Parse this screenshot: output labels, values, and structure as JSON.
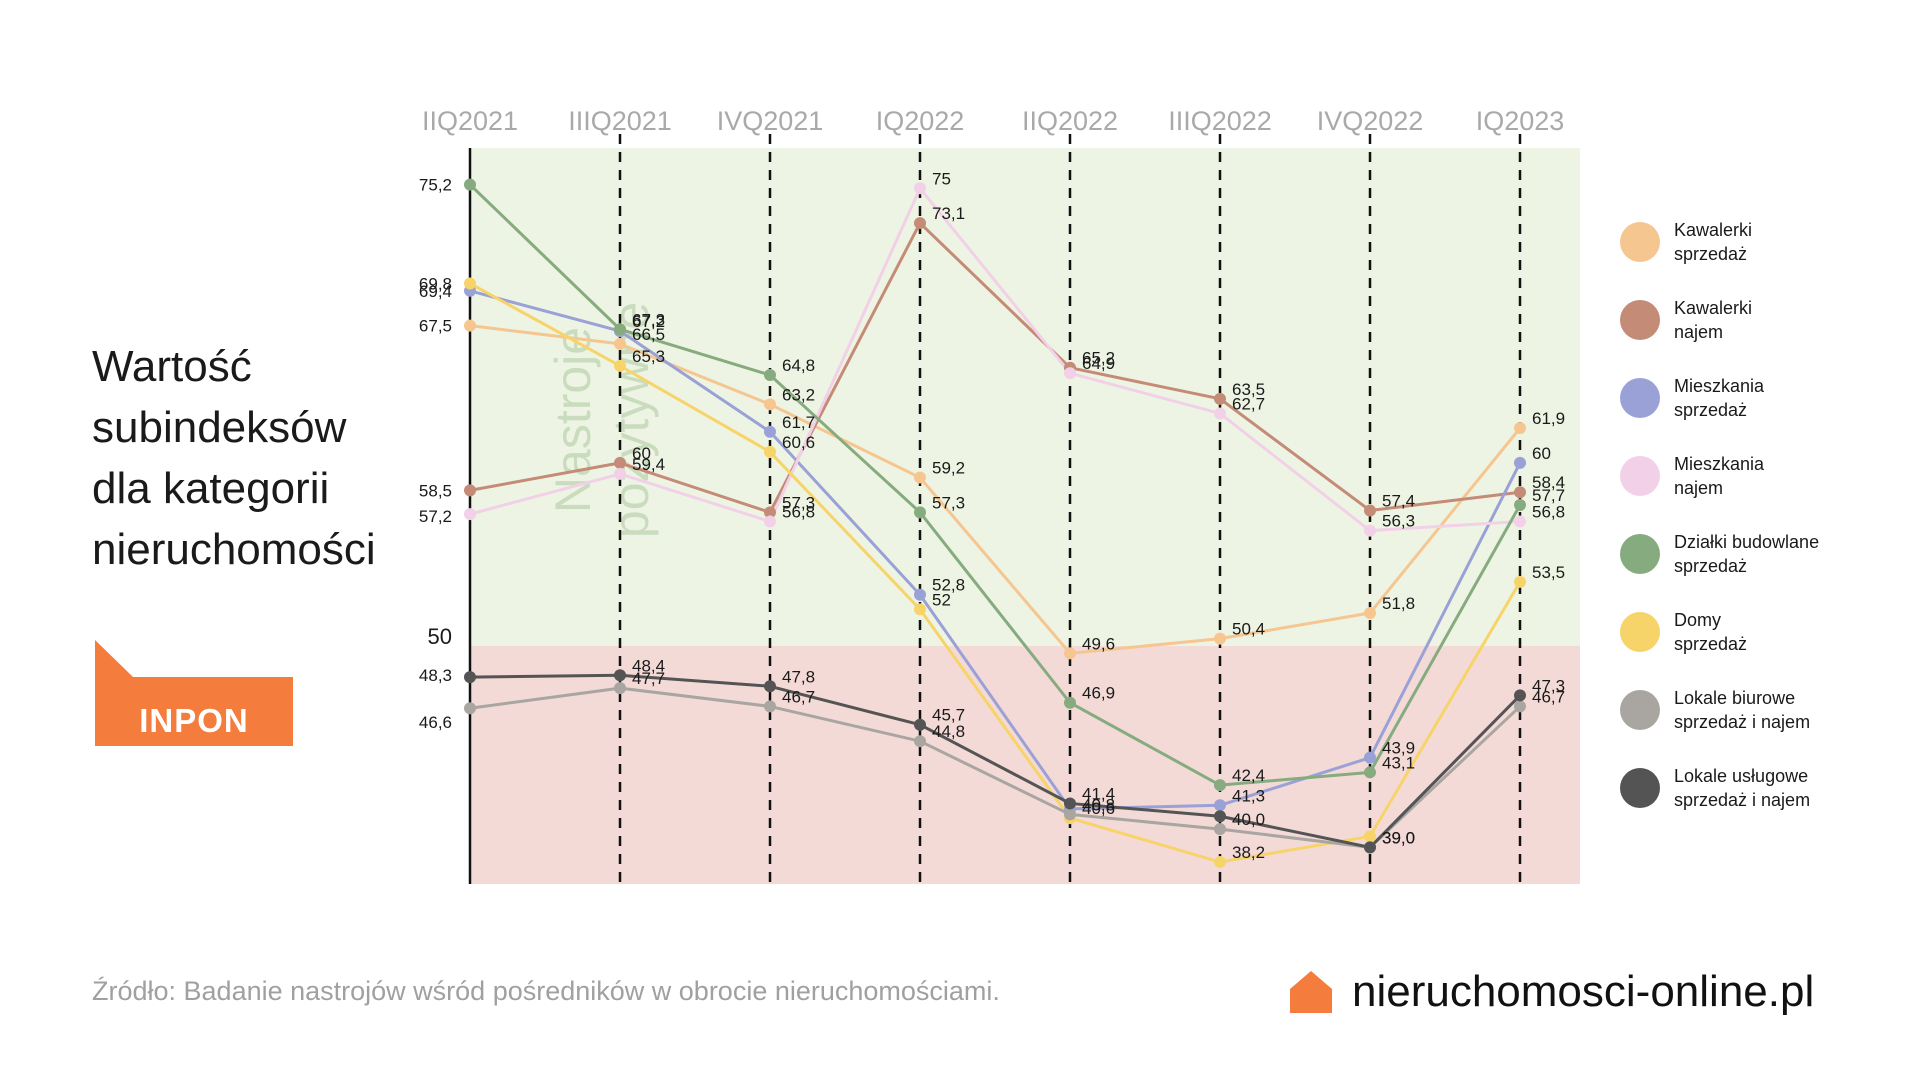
{
  "title_lines": [
    "Wartość",
    "subindeksów",
    "dla kategorii",
    "nieruchomości"
  ],
  "badge": {
    "label": "INPON",
    "color": "#f47c3c"
  },
  "source": "Źródło: Badanie nastrojów wśród pośredników w obrocie nieruchomościami.",
  "site": {
    "label": "nieruchomosci-online.pl",
    "icon": "house-icon",
    "icon_color": "#f47c3c"
  },
  "legend": [
    {
      "line1": "Kawalerki",
      "line2": "sprzedaż"
    },
    {
      "line1": "Kawalerki",
      "line2": "najem"
    },
    {
      "line1": "Mieszkania",
      "line2": "sprzedaż"
    },
    {
      "line1": "Mieszkania",
      "line2": "najem"
    },
    {
      "line1": "Działki budowlane",
      "line2": "sprzedaż"
    },
    {
      "line1": "Domy",
      "line2": "sprzedaż"
    },
    {
      "line1": "Lokale biurowe",
      "line2": "sprzedaż i najem"
    },
    {
      "line1": "Lokale usługowe",
      "line2": "sprzedaż i najem"
    }
  ],
  "chart_data": {
    "type": "line",
    "title": "Wartość subindeksów dla kategorii nieruchomości",
    "categories": [
      "IIQ2021",
      "IIIQ2021",
      "IVQ2021",
      "IQ2022",
      "IIQ2022",
      "IIIQ2022",
      "IVQ2022",
      "IQ2023"
    ],
    "ylim": [
      37,
      77.2
    ],
    "threshold": {
      "value": 50,
      "label": "50"
    },
    "region_labels": {
      "positive": "Nastroje pozytywne"
    },
    "region_colors": {
      "positive": "#eef4e3",
      "negative": "#f3dad7"
    },
    "series": [
      {
        "name": "Kawalerki sprzedaż",
        "color": "#f6c690",
        "values": [
          67.5,
          66.5,
          63.2,
          59.2,
          49.6,
          50.4,
          51.8,
          61.9
        ],
        "labels": [
          "67,5",
          "66,5",
          "63,2",
          "59,2",
          "49,6",
          "50,4",
          "51,8",
          "61,9"
        ]
      },
      {
        "name": "Kawalerki najem",
        "color": "#c48b77",
        "values": [
          58.5,
          60,
          57.3,
          73.1,
          65.2,
          63.5,
          57.4,
          58.4
        ],
        "labels": [
          "58,5",
          "60",
          "57,3",
          "73,1",
          "65,2",
          "63,5",
          "57,4",
          "58,4"
        ]
      },
      {
        "name": "Mieszkania sprzedaż",
        "color": "#9aa1d6",
        "values": [
          69.4,
          67.2,
          61.7,
          52.8,
          41.1,
          41.3,
          43.9,
          60
        ],
        "labels": [
          "69,4",
          "67,2",
          "61,7",
          "52,8",
          "",
          "41,3",
          "43,9",
          "60"
        ]
      },
      {
        "name": "Mieszkania najem",
        "color": "#f2d1e8",
        "values": [
          57.2,
          59.4,
          56.8,
          75,
          64.9,
          62.7,
          56.3,
          56.8
        ],
        "labels": [
          "57,2",
          "59,4",
          "56,8",
          "75",
          "64,9",
          "62,7",
          "56,3",
          "56,8"
        ]
      },
      {
        "name": "Działki budowlane sprzedaż",
        "color": "#86ab7f",
        "values": [
          75.2,
          67.3,
          64.8,
          57.3,
          46.9,
          42.4,
          43.1,
          57.7
        ],
        "labels": [
          "75,2",
          "67,3",
          "64,8",
          "57,3",
          "46,9",
          "42,4",
          "43,1",
          "57,7"
        ]
      },
      {
        "name": "Domy sprzedaż",
        "color": "#f7d46a",
        "values": [
          69.8,
          65.3,
          60.6,
          52,
          40.6,
          38.2,
          39.6,
          53.5
        ],
        "labels": [
          "69,8",
          "65,3",
          "60,6",
          "52",
          "40,6",
          "38,2",
          "",
          "53,5"
        ]
      },
      {
        "name": "Lokale biurowe sprzedaż i najem",
        "color": "#a9a6a1",
        "values": [
          46.6,
          47.7,
          46.7,
          44.8,
          40.8,
          40.0,
          39.0,
          46.7
        ],
        "labels": [
          "46,6",
          "47,7",
          "46,7",
          "44,8",
          "40,8",
          "40,0",
          "39,0",
          "46,7"
        ]
      },
      {
        "name": "Lokale usługowe sprzedaż i najem",
        "color": "#545454",
        "values": [
          48.3,
          48.4,
          47.8,
          45.7,
          41.4,
          40.7,
          39.0,
          47.3
        ],
        "labels": [
          "48,3",
          "48,4",
          "47,8",
          "45,7",
          "41,4",
          "",
          "39,0",
          "47,3"
        ]
      }
    ]
  }
}
